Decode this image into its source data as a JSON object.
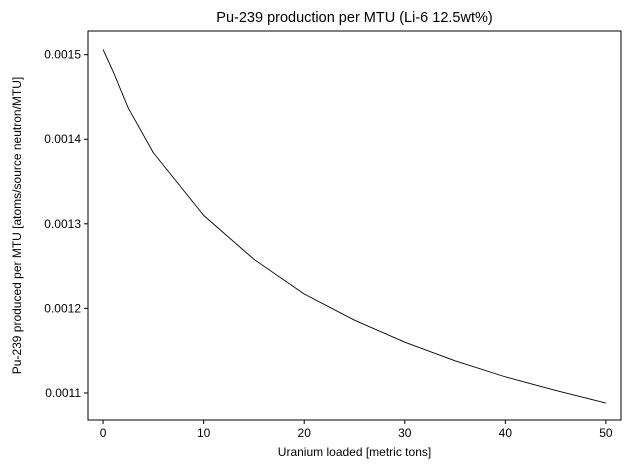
{
  "chart_data": {
    "type": "line",
    "title": "Pu-239 production per MTU (Li-6 12.5wt%)",
    "xlabel": "Uranium loaded [metric tons]",
    "ylabel": "Pu-239 produced per MTU [atoms/source neutron/MTU]",
    "xlim": [
      -1.5,
      51.5
    ],
    "ylim": [
      0.001068,
      0.001528
    ],
    "xticks": [
      0,
      10,
      20,
      30,
      40,
      50
    ],
    "xtick_labels": [
      "0",
      "10",
      "20",
      "30",
      "40",
      "50"
    ],
    "yticks": [
      0.0011,
      0.0012,
      0.0013,
      0.0014,
      0.0015
    ],
    "ytick_labels": [
      "0.0011",
      "0.0012",
      "0.0013",
      "0.0014",
      "0.0015"
    ],
    "grid": false,
    "series": [
      {
        "color": "#000000",
        "x": [
          0,
          1,
          2.5,
          5,
          10,
          15,
          20,
          25,
          30,
          35,
          40,
          45,
          50
        ],
        "y": [
          0.001506,
          0.00148,
          0.001437,
          0.001384,
          0.00131,
          0.001258,
          0.001217,
          0.001186,
          0.00116,
          0.001138,
          0.001119,
          0.001103,
          0.001088
        ]
      }
    ]
  }
}
